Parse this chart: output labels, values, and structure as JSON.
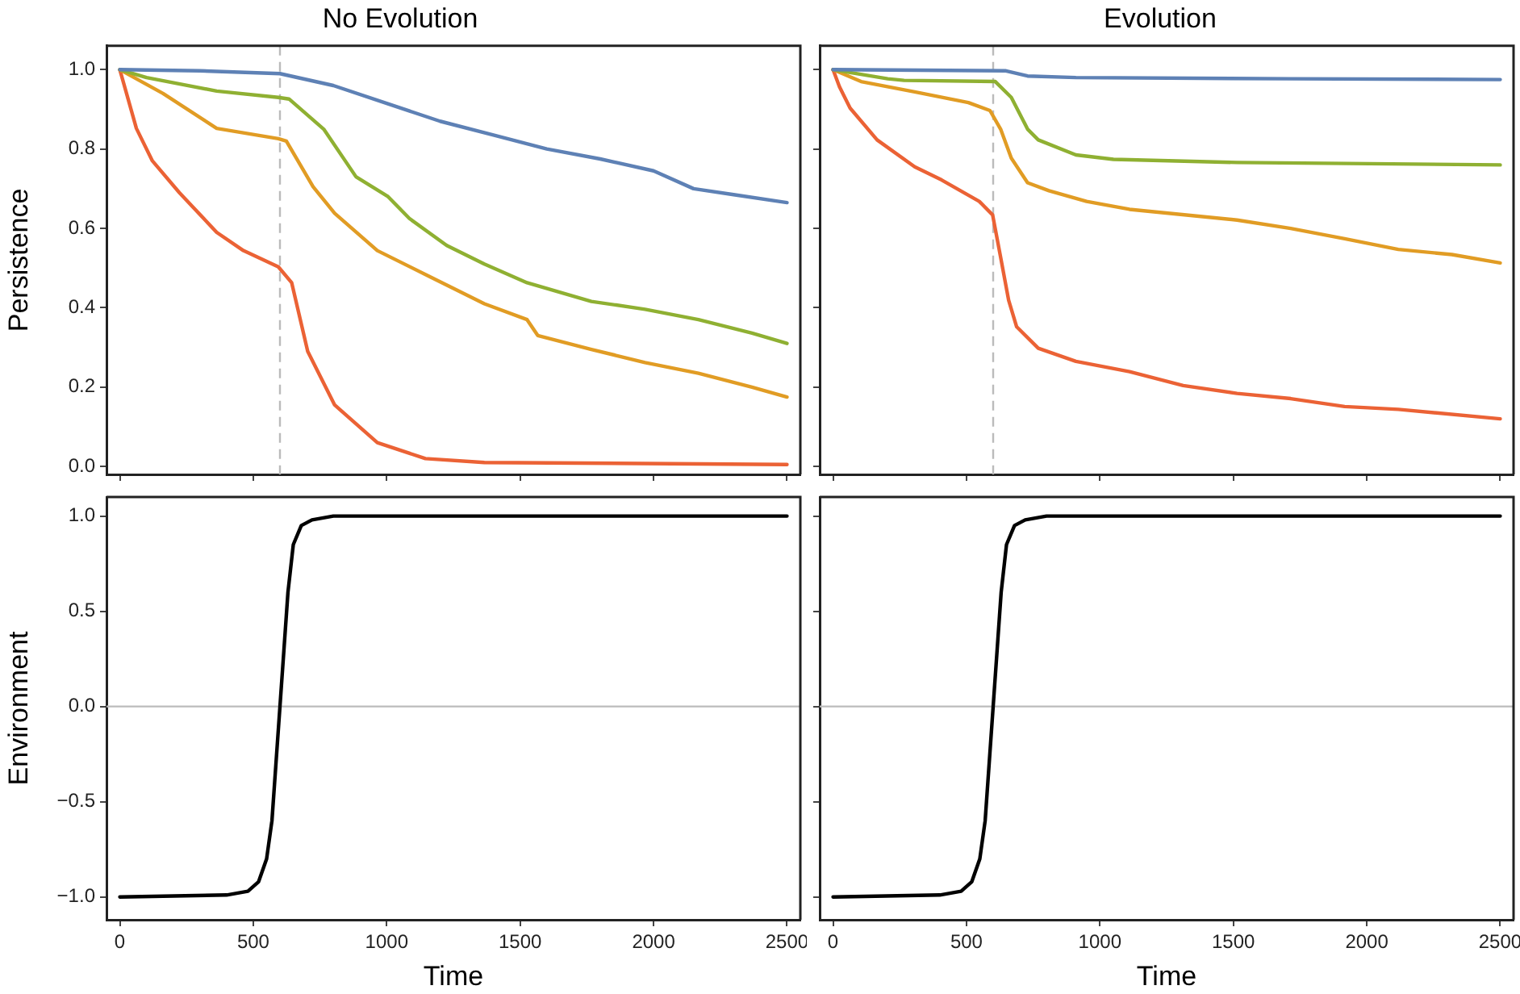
{
  "chart_data": [
    {
      "type": "line",
      "title": "No Evolution",
      "ylabel": "Persistence",
      "tick_labels": "y",
      "marker": "none",
      "xlim": [
        -50,
        2550
      ],
      "ylim": [
        -0.02,
        1.06
      ],
      "xticks": [
        0,
        500,
        1000,
        1500,
        2000,
        2500
      ],
      "yticks": [
        {
          "value": 0,
          "label": "0.0"
        },
        {
          "value": 0.2,
          "label": "0.2"
        },
        {
          "value": 0.4,
          "label": "0.4"
        },
        {
          "value": 0.6,
          "label": "0.6"
        },
        {
          "value": 0.8,
          "label": "0.8"
        },
        {
          "value": 1,
          "label": "1.0"
        }
      ],
      "ref_lines": [
        {
          "axis": "x",
          "value": 600,
          "color": "#bbbbbb",
          "line_style": "dashed"
        }
      ],
      "series": [
        {
          "color": "#5e81b5",
          "x": [
            0,
            300,
            600,
            800,
            1000,
            1200,
            1400,
            1600,
            1800,
            2000,
            2150,
            2300,
            2500
          ],
          "values": [
            1,
            0.997,
            0.99,
            0.96,
            0.915,
            0.87,
            0.835,
            0.8,
            0.775,
            0.745,
            0.7,
            0.685,
            0.665
          ]
        },
        {
          "color": "#8fb032",
          "x": [
            0,
            100,
            363,
            594,
            634,
            764,
            885,
            1005,
            1085,
            1225,
            1366,
            1526,
            1767,
            1968,
            2168,
            2369,
            2500
          ],
          "values": [
            1,
            0.98,
            0.946,
            0.93,
            0.926,
            0.85,
            0.73,
            0.68,
            0.625,
            0.557,
            0.51,
            0.463,
            0.416,
            0.396,
            0.37,
            0.336,
            0.31
          ]
        },
        {
          "color": "#e19c24",
          "x": [
            0,
            162,
            363,
            594,
            624,
            724,
            805,
            965,
            1165,
            1366,
            1526,
            1566,
            1767,
            1968,
            2168,
            2369,
            2500
          ],
          "values": [
            1,
            0.94,
            0.852,
            0.826,
            0.82,
            0.705,
            0.638,
            0.544,
            0.477,
            0.41,
            0.37,
            0.33,
            0.295,
            0.262,
            0.235,
            0.2,
            0.175
          ]
        },
        {
          "color": "#eb6235",
          "x": [
            0,
            62,
            122,
            223,
            363,
            463,
            594,
            644,
            704,
            805,
            965,
            1145,
            1366,
            2500
          ],
          "values": [
            1,
            0.852,
            0.77,
            0.69,
            0.59,
            0.544,
            0.503,
            0.463,
            0.29,
            0.155,
            0.06,
            0.02,
            0.01,
            0.005
          ]
        }
      ]
    },
    {
      "type": "line",
      "title": "Evolution",
      "tick_labels": false,
      "marker": "none",
      "xlim": [
        -50,
        2550
      ],
      "ylim": [
        -0.02,
        1.06
      ],
      "xticks": [
        0,
        500,
        1000,
        1500,
        2000,
        2500
      ],
      "yticks": [
        0,
        0.2,
        0.4,
        0.6,
        0.8,
        1
      ],
      "ref_lines": [
        {
          "axis": "x",
          "value": 600,
          "color": "#bbbbbb",
          "line_style": "dashed"
        }
      ],
      "series": [
        {
          "color": "#5e81b5",
          "x": [
            0,
            648,
            729,
            910,
            1715,
            2500
          ],
          "values": [
            1,
            0.997,
            0.984,
            0.98,
            0.977,
            0.975
          ]
        },
        {
          "color": "#8fb032",
          "x": [
            0,
            205,
            266,
            608,
            668,
            729,
            769,
            910,
            1051,
            1514,
            2500
          ],
          "values": [
            1,
            0.977,
            0.973,
            0.97,
            0.93,
            0.85,
            0.823,
            0.785,
            0.774,
            0.766,
            0.76
          ]
        },
        {
          "color": "#e19c24",
          "x": [
            0,
            105,
            306,
            507,
            588,
            628,
            668,
            729,
            809,
            950,
            1111,
            1514,
            1715,
            1917,
            2118,
            2319,
            2500
          ],
          "values": [
            1,
            0.97,
            0.944,
            0.917,
            0.897,
            0.85,
            0.777,
            0.715,
            0.695,
            0.668,
            0.648,
            0.621,
            0.6,
            0.574,
            0.547,
            0.534,
            0.513
          ]
        },
        {
          "color": "#eb6235",
          "x": [
            0,
            24,
            64,
            165,
            306,
            407,
            548,
            598,
            628,
            658,
            688,
            769,
            910,
            1111,
            1312,
            1514,
            1715,
            1917,
            2118,
            2500
          ],
          "values": [
            1,
            0.957,
            0.903,
            0.823,
            0.755,
            0.722,
            0.668,
            0.634,
            0.527,
            0.419,
            0.352,
            0.298,
            0.265,
            0.239,
            0.204,
            0.184,
            0.171,
            0.151,
            0.144,
            0.12
          ]
        }
      ]
    },
    {
      "type": "line",
      "xlabel": "Time",
      "ylabel": "Environment",
      "marker": "none",
      "xlim": [
        -50,
        2550
      ],
      "ylim": [
        -1.12,
        1.1
      ],
      "xticks": [
        0,
        500,
        1000,
        1500,
        2000,
        2500
      ],
      "yticks": [
        {
          "value": -1,
          "label": "−1.0"
        },
        {
          "value": -0.5,
          "label": "−0.5"
        },
        {
          "value": 0,
          "label": "0.0"
        },
        {
          "value": 0.5,
          "label": "0.5"
        },
        {
          "value": 1,
          "label": "1.0"
        }
      ],
      "ref_lines": [
        {
          "axis": "y",
          "value": 0,
          "color": "#bbbbbb"
        }
      ],
      "series": [
        {
          "color": "#000000",
          "x": [
            0,
            400,
            480,
            520,
            550,
            570,
            585,
            600,
            615,
            630,
            650,
            680,
            720,
            800,
            1000,
            2500
          ],
          "values": [
            -1,
            -0.99,
            -0.97,
            -0.92,
            -0.8,
            -0.6,
            -0.3,
            0,
            0.3,
            0.6,
            0.85,
            0.95,
            0.98,
            1,
            1,
            1
          ]
        }
      ]
    },
    {
      "type": "line",
      "xlabel": "Time",
      "tick_labels": "x",
      "marker": "none",
      "xlim": [
        -50,
        2550
      ],
      "ylim": [
        -1.12,
        1.1
      ],
      "xticks": [
        0,
        500,
        1000,
        1500,
        2000,
        2500
      ],
      "yticks": [
        -1,
        -0.5,
        0,
        0.5,
        1
      ],
      "ref_lines": [
        {
          "axis": "y",
          "value": 0,
          "color": "#bbbbbb"
        }
      ],
      "series": [
        {
          "color": "#000000",
          "x": [
            0,
            400,
            480,
            520,
            550,
            570,
            585,
            600,
            615,
            630,
            650,
            680,
            720,
            800,
            1000,
            2500
          ],
          "values": [
            -1,
            -0.99,
            -0.97,
            -0.92,
            -0.8,
            -0.6,
            -0.3,
            0,
            0.3,
            0.6,
            0.85,
            0.95,
            0.98,
            1,
            1,
            1
          ]
        }
      ]
    }
  ]
}
